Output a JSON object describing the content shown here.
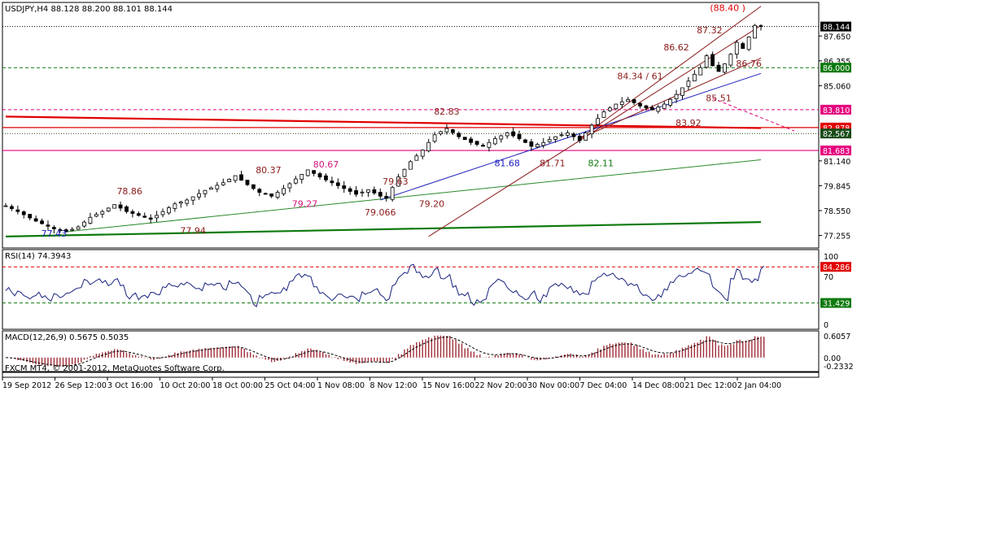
{
  "chart_data": [
    {
      "type": "candlestick",
      "header": "USDJPY,H4  88.128 88.200 88.101 88.144",
      "ylim": [
        76.6,
        89.4
      ],
      "y_ticks": [
        "87.650",
        "86.355",
        "85.060",
        "81.140",
        "79.845",
        "78.550",
        "77.255"
      ],
      "x_tick_labels": [
        "19 Sep 2012",
        "26 Sep 12:00",
        "3 Oct 16:00",
        "10 Oct 20:00",
        "18 Oct 00:00",
        "25 Oct 04:00",
        "1 Nov 08:00",
        "8 Nov 12:00",
        "15 Nov 16:00",
        "22 Nov 20:00",
        "30 Nov 00:00",
        "7 Dec 04:00",
        "14 Dec 08:00",
        "21 Dec 12:00",
        "2 Jan 04:00"
      ],
      "price_path": [
        [
          0,
          78.8
        ],
        [
          2,
          78.5
        ],
        [
          5,
          78.0
        ],
        [
          8,
          77.6
        ],
        [
          10,
          77.45
        ],
        [
          12,
          77.7
        ],
        [
          14,
          78.2
        ],
        [
          16,
          78.5
        ],
        [
          18,
          78.86
        ],
        [
          20,
          78.5
        ],
        [
          22,
          78.3
        ],
        [
          24,
          78.1
        ],
        [
          26,
          78.5
        ],
        [
          28,
          78.9
        ],
        [
          30,
          79.1
        ],
        [
          33,
          79.6
        ],
        [
          36,
          80.0
        ],
        [
          38,
          80.37
        ],
        [
          40,
          79.9
        ],
        [
          42,
          79.5
        ],
        [
          44,
          79.3
        ],
        [
          46,
          79.7
        ],
        [
          48,
          80.2
        ],
        [
          50,
          80.67
        ],
        [
          52,
          80.3
        ],
        [
          54,
          80.0
        ],
        [
          56,
          79.7
        ],
        [
          58,
          79.4
        ],
        [
          60,
          79.63
        ],
        [
          62,
          79.3
        ],
        [
          63,
          79.2
        ],
        [
          65,
          80.3
        ],
        [
          67,
          81.1
        ],
        [
          69,
          81.7
        ],
        [
          71,
          82.5
        ],
        [
          73,
          82.83
        ],
        [
          75,
          82.4
        ],
        [
          77,
          82.1
        ],
        [
          79,
          81.9
        ],
        [
          81,
          82.3
        ],
        [
          83,
          82.6
        ],
        [
          85,
          82.3
        ],
        [
          87,
          81.9
        ],
        [
          89,
          82.1
        ],
        [
          91,
          82.4
        ],
        [
          93,
          82.6
        ],
        [
          95,
          82.2
        ],
        [
          97,
          83.0
        ],
        [
          99,
          83.7
        ],
        [
          101,
          84.1
        ],
        [
          103,
          84.34
        ],
        [
          105,
          84.0
        ],
        [
          107,
          83.8
        ],
        [
          109,
          84.1
        ],
        [
          111,
          84.6
        ],
        [
          113,
          85.3
        ],
        [
          115,
          86.0
        ],
        [
          116,
          86.62
        ],
        [
          117,
          86.1
        ],
        [
          118,
          85.8
        ],
        [
          119,
          86.2
        ],
        [
          120,
          86.7
        ],
        [
          121,
          87.32
        ],
        [
          122,
          87.0
        ],
        [
          123,
          87.6
        ],
        [
          124,
          88.2
        ],
        [
          125,
          88.144
        ]
      ],
      "bars": 126,
      "horizontal_levels": [
        {
          "value": 88.144,
          "label": "88.144",
          "color": "#000000",
          "style": "dotted"
        },
        {
          "value": 86.0,
          "label": "86.000",
          "color": "#0e7a0e",
          "style": "dashed"
        },
        {
          "value": 83.81,
          "label": "83.810",
          "color": "#e5007e",
          "style": "dashed"
        },
        {
          "value": 82.878,
          "label": "82.878",
          "color": "#e00000",
          "style": "solid"
        },
        {
          "value": 82.567,
          "label": "82.567",
          "color": "#1a4d1a",
          "style": "dotted"
        },
        {
          "value": 81.683,
          "label": "81.683",
          "color": "#e5007e",
          "style": "solid"
        }
      ],
      "trend_lines": [
        {
          "color": "#e00000",
          "points": [
            [
              0,
              83.45
            ],
            [
              125,
              82.85
            ]
          ]
        },
        {
          "color": "#0d7a0d",
          "points": [
            [
              0,
              77.2
            ],
            [
              125,
              77.95
            ]
          ]
        },
        {
          "color": "#2a8a2a",
          "points": [
            [
              10,
              77.45
            ],
            [
              125,
              81.2
            ]
          ]
        },
        {
          "color": "#2020c0",
          "points": [
            [
              62,
              79.1
            ],
            [
              125,
              85.7
            ]
          ]
        },
        {
          "color": "#8b1a1a",
          "points": [
            [
              70,
              77.2
            ],
            [
              125,
              88.2
            ]
          ]
        },
        {
          "color": "#8b1a1a",
          "points": [
            [
              95,
              82.3
            ],
            [
              125,
              89.2
            ]
          ]
        },
        {
          "color": "#8b1a1a",
          "points": [
            [
              95,
              82.3
            ],
            [
              125,
              86.5
            ]
          ]
        }
      ],
      "annotations": [
        {
          "text": "(88.40 )",
          "x": 119.5,
          "y": 88.95,
          "color": "#e00000"
        },
        {
          "text": "87.32",
          "x": 116.5,
          "y": 87.8,
          "color": "#8b1a1a"
        },
        {
          "text": "86.62",
          "x": 111,
          "y": 86.9,
          "color": "#8b1a1a"
        },
        {
          "text": "86.76",
          "x": 123,
          "y": 86.05,
          "color": "#8b1a1a"
        },
        {
          "text": "84.34 / 61",
          "x": 105,
          "y": 85.4,
          "color": "#8b1a1a"
        },
        {
          "text": "85.51",
          "x": 118,
          "y": 84.25,
          "color": "#8b1a1a"
        },
        {
          "text": "83.92",
          "x": 113,
          "y": 82.95,
          "color": "#8b1a1a"
        },
        {
          "text": "82.83",
          "x": 73,
          "y": 83.55,
          "color": "#8b1a1a"
        },
        {
          "text": "81.68",
          "x": 83,
          "y": 80.85,
          "color": "#2020c0"
        },
        {
          "text": "81.71",
          "x": 90.5,
          "y": 80.85,
          "color": "#8b1a1a"
        },
        {
          "text": "82.11",
          "x": 98.5,
          "y": 80.85,
          "color": "#0d7a0d"
        },
        {
          "text": "80.37",
          "x": 43.5,
          "y": 80.5,
          "color": "#8b1a1a"
        },
        {
          "text": "80.67",
          "x": 53,
          "y": 80.8,
          "color": "#d4147c"
        },
        {
          "text": "79.27",
          "x": 49.5,
          "y": 78.75,
          "color": "#d4147c"
        },
        {
          "text": "79.63",
          "x": 64.5,
          "y": 79.9,
          "color": "#8b1a1a"
        },
        {
          "text": "79.20",
          "x": 70.5,
          "y": 78.75,
          "color": "#8b1a1a"
        },
        {
          "text": "79.066",
          "x": 62,
          "y": 78.3,
          "color": "#8b1a1a"
        },
        {
          "text": "78.86",
          "x": 20.5,
          "y": 79.4,
          "color": "#8b1a1a"
        },
        {
          "text": "77.94",
          "x": 31,
          "y": 77.35,
          "color": "#8b1a1a"
        },
        {
          "text": "77.43",
          "x": 8,
          "y": 77.2,
          "color": "#2020c0"
        }
      ]
    },
    {
      "type": "line",
      "title": "RSI(14) 74.3943",
      "ylim": [
        0,
        100
      ],
      "y_ticks": [
        "100",
        "70",
        "0"
      ],
      "levels": [
        {
          "value": 84.286,
          "label": "84.286",
          "color": "#e00000"
        },
        {
          "value": 31.429,
          "label": "31.429",
          "color": "#0e7a0e"
        }
      ],
      "series_color": "#1a237e",
      "values_from": "price_path"
    },
    {
      "type": "bar",
      "title": "MACD(12,26,9) 0.5675 0.5035",
      "ylim": [
        -0.3,
        0.7
      ],
      "y_ticks": [
        "0.6057",
        "0.00",
        "-0.2332"
      ],
      "bar_color": "#a0303a",
      "signal_color": "#000000",
      "values_from": "price_path"
    }
  ],
  "footer": {
    "copyright": "FXCM MT4, © 2001-2012, MetaQuotes Software Corp."
  }
}
